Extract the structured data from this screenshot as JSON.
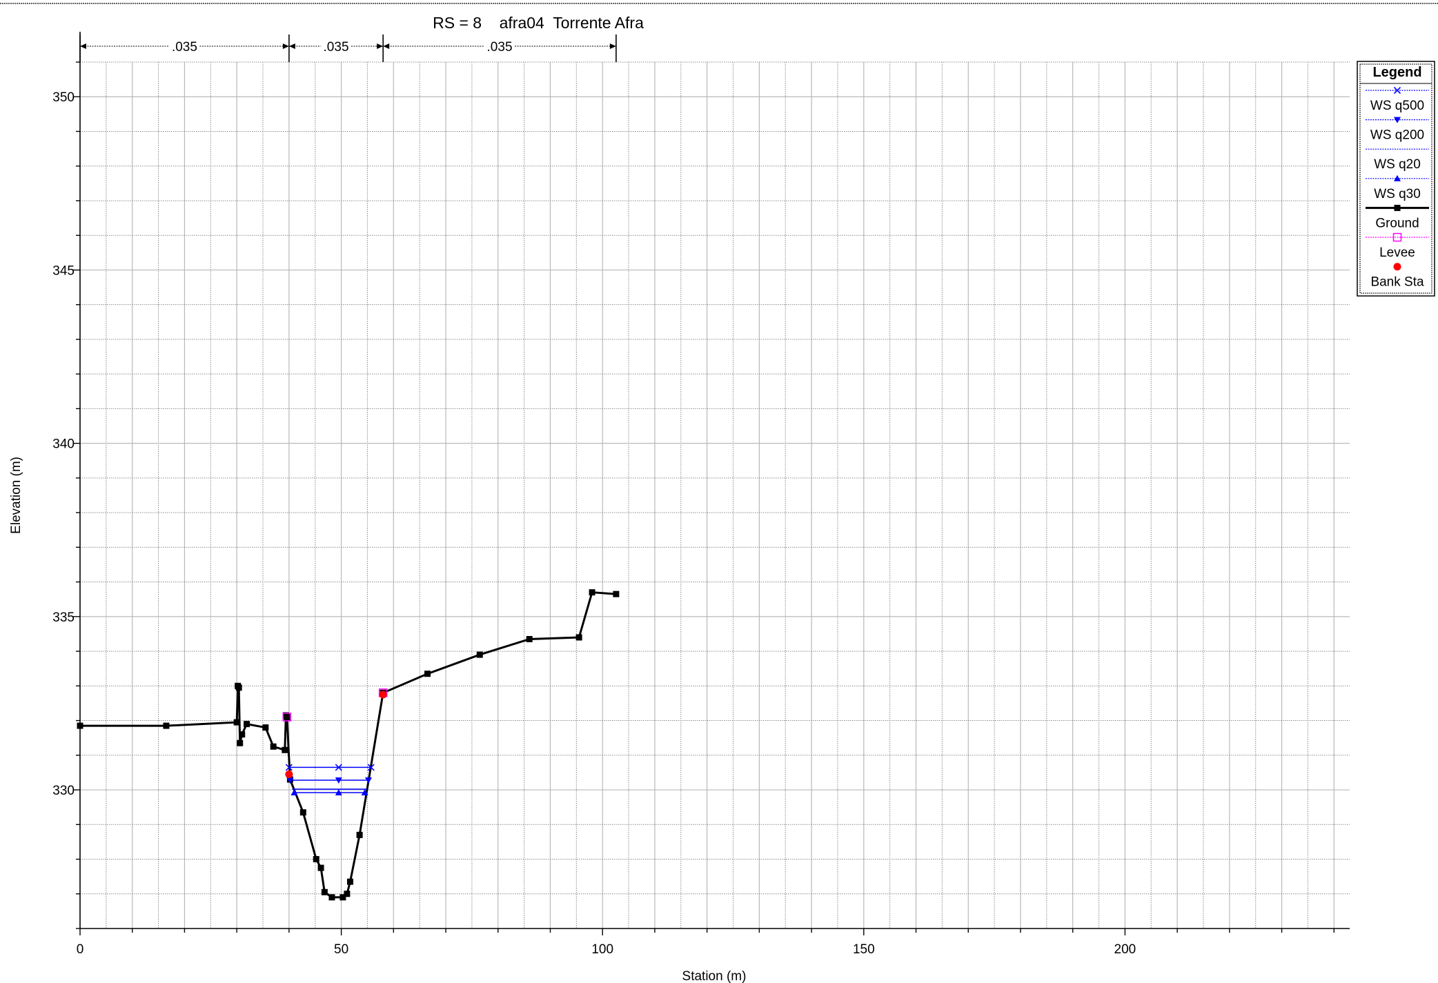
{
  "chart_data": {
    "type": "line",
    "title": "RS = 8    afra04  Torrente Afra",
    "xlabel": "Station (m)",
    "ylabel": "Elevation (m)",
    "xlim": [
      0,
      243
    ],
    "ylim": [
      326,
      351
    ],
    "x_ticks": [
      0,
      50,
      100,
      150,
      200
    ],
    "y_ticks": [
      330,
      335,
      340,
      345,
      350
    ],
    "grid": true,
    "legend_position": "right",
    "legend_title": "Legend",
    "mannings": {
      "breaks": [
        0,
        40,
        58,
        102.6
      ],
      "labels": [
        ".035",
        ".035",
        ".035"
      ]
    },
    "series": [
      {
        "name": "WS q500",
        "color": "#0000ff",
        "marker": "x",
        "x": [
          40,
          49.5,
          55.7
        ],
        "y": [
          330.65,
          330.65,
          330.65
        ]
      },
      {
        "name": "WS q200",
        "color": "#0000ff",
        "marker": "tri-down",
        "x": [
          40.2,
          49.5,
          55.2
        ],
        "y": [
          330.28,
          330.28,
          330.28
        ]
      },
      {
        "name": "WS q20",
        "color": "#0000ff",
        "marker": "none",
        "x": [
          40.6,
          49.5,
          54.9
        ],
        "y": [
          330.02,
          330.02,
          330.02
        ]
      },
      {
        "name": "WS q30",
        "color": "#0000ff",
        "marker": "tri-up",
        "x": [
          41,
          49.5,
          54.5
        ],
        "y": [
          329.92,
          329.92,
          329.92
        ]
      },
      {
        "name": "Ground",
        "color": "#000000",
        "marker": "square",
        "x": [
          0,
          16.5,
          30,
          30.2,
          30.4,
          30.6,
          31,
          31.9,
          35.5,
          37,
          39.2,
          39.4,
          39.6,
          40.2,
          42.7,
          45.2,
          46.1,
          46.8,
          48.2,
          50.3,
          51.1,
          51.7,
          53.5,
          58,
          66.5,
          76.5,
          86,
          95.5,
          98,
          102.6
        ],
        "y": [
          331.85,
          331.85,
          331.95,
          333.0,
          332.95,
          331.35,
          331.6,
          331.9,
          331.8,
          331.25,
          331.15,
          332.15,
          332.1,
          330.3,
          329.35,
          328.0,
          327.75,
          327.05,
          326.9,
          326.9,
          327.0,
          327.35,
          328.7,
          332.8,
          333.35,
          333.9,
          334.35,
          334.4,
          335.7,
          335.65
        ]
      },
      {
        "name": "Levee",
        "color": "#ff00ff",
        "marker": "open-square",
        "x": [
          39.6,
          58
        ],
        "y": [
          332.1,
          332.8
        ]
      },
      {
        "name": "Bank Sta",
        "color": "#ff0000",
        "marker": "dot",
        "x": [
          40,
          58
        ],
        "y": [
          330.45,
          332.75
        ]
      }
    ]
  }
}
